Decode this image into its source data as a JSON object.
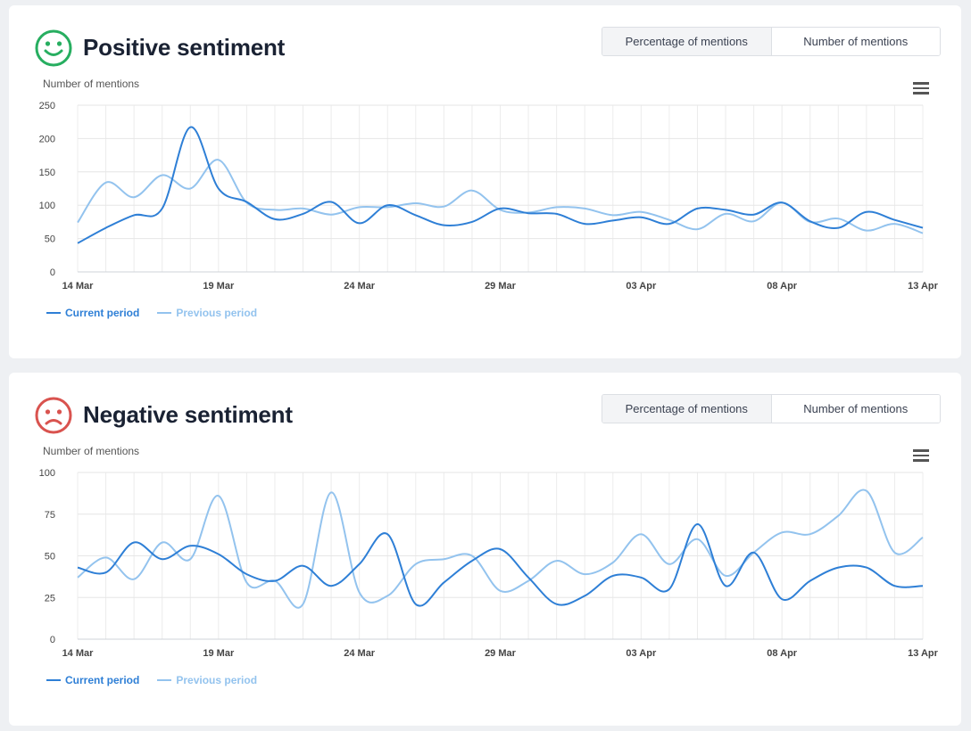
{
  "colors": {
    "current": "#2e7fd6",
    "previous": "#93c3ee",
    "positive": "#27ae60",
    "negative": "#d9534f"
  },
  "positive": {
    "title": "Positive sentiment",
    "face_icon": "smiley-face-icon",
    "toggle": {
      "percentage": "Percentage of mentions",
      "number": "Number of mentions",
      "active": "percentage"
    },
    "legend": {
      "current": "Current period",
      "previous": "Previous period"
    }
  },
  "negative": {
    "title": "Negative sentiment",
    "face_icon": "sad-face-icon",
    "toggle": {
      "percentage": "Percentage of mentions",
      "number": "Number of mentions",
      "active": "percentage"
    },
    "legend": {
      "current": "Current period",
      "previous": "Previous period"
    }
  },
  "chart_data": [
    {
      "type": "line",
      "ylabel": "Number of mentions",
      "ylim": [
        0,
        250
      ],
      "yticks": [
        0,
        50,
        100,
        150,
        200,
        250
      ],
      "x": [
        "14 Mar",
        "15 Mar",
        "16 Mar",
        "17 Mar",
        "18 Mar",
        "19 Mar",
        "20 Mar",
        "21 Mar",
        "22 Mar",
        "23 Mar",
        "24 Mar",
        "25 Mar",
        "26 Mar",
        "27 Mar",
        "28 Mar",
        "29 Mar",
        "30 Mar",
        "31 Mar",
        "01 Apr",
        "02 Apr",
        "03 Apr",
        "04 Apr",
        "05 Apr",
        "06 Apr",
        "07 Apr",
        "08 Apr",
        "09 Apr",
        "10 Apr",
        "11 Apr",
        "12 Apr",
        "13 Apr"
      ],
      "xtick_labels": [
        "14 Mar",
        "19 Mar",
        "24 Mar",
        "29 Mar",
        "03 Apr",
        "08 Apr",
        "13 Apr"
      ],
      "grid": true,
      "legend": "bottom-left",
      "series": [
        {
          "name": "Current period",
          "values": [
            43,
            66,
            85,
            95,
            217,
            125,
            105,
            79,
            87,
            105,
            73,
            100,
            85,
            70,
            75,
            95,
            88,
            87,
            72,
            77,
            82,
            72,
            95,
            93,
            86,
            104,
            76,
            66,
            90,
            78,
            66
          ]
        },
        {
          "name": "Previous period",
          "values": [
            74,
            134,
            112,
            145,
            125,
            168,
            104,
            93,
            95,
            86,
            97,
            97,
            103,
            98,
            122,
            93,
            89,
            97,
            95,
            85,
            90,
            78,
            64,
            87,
            76,
            104,
            75,
            80,
            62,
            72,
            58
          ]
        }
      ]
    },
    {
      "type": "line",
      "ylabel": "Number of mentions",
      "ylim": [
        0,
        100
      ],
      "yticks": [
        0,
        25,
        50,
        75,
        100
      ],
      "x": [
        "14 Mar",
        "15 Mar",
        "16 Mar",
        "17 Mar",
        "18 Mar",
        "19 Mar",
        "20 Mar",
        "21 Mar",
        "22 Mar",
        "23 Mar",
        "24 Mar",
        "25 Mar",
        "26 Mar",
        "27 Mar",
        "28 Mar",
        "29 Mar",
        "30 Mar",
        "31 Mar",
        "01 Apr",
        "02 Apr",
        "03 Apr",
        "04 Apr",
        "05 Apr",
        "06 Apr",
        "07 Apr",
        "08 Apr",
        "09 Apr",
        "10 Apr",
        "11 Apr",
        "12 Apr",
        "13 Apr"
      ],
      "xtick_labels": [
        "14 Mar",
        "19 Mar",
        "24 Mar",
        "29 Mar",
        "03 Apr",
        "08 Apr",
        "13 Apr"
      ],
      "grid": true,
      "legend": "bottom-left",
      "series": [
        {
          "name": "Current period",
          "values": [
            43,
            40,
            58,
            48,
            56,
            51,
            39,
            35,
            44,
            32,
            45,
            63,
            21,
            34,
            47,
            54,
            37,
            21,
            26,
            38,
            37,
            30,
            69,
            32,
            52,
            24,
            35,
            43,
            43,
            32,
            32
          ]
        },
        {
          "name": "Previous period",
          "values": [
            37,
            49,
            36,
            58,
            48,
            86,
            34,
            35,
            21,
            88,
            28,
            26,
            45,
            48,
            50,
            29,
            35,
            47,
            39,
            46,
            63,
            45,
            60,
            38,
            52,
            64,
            63,
            74,
            89,
            52,
            61
          ]
        }
      ]
    }
  ]
}
